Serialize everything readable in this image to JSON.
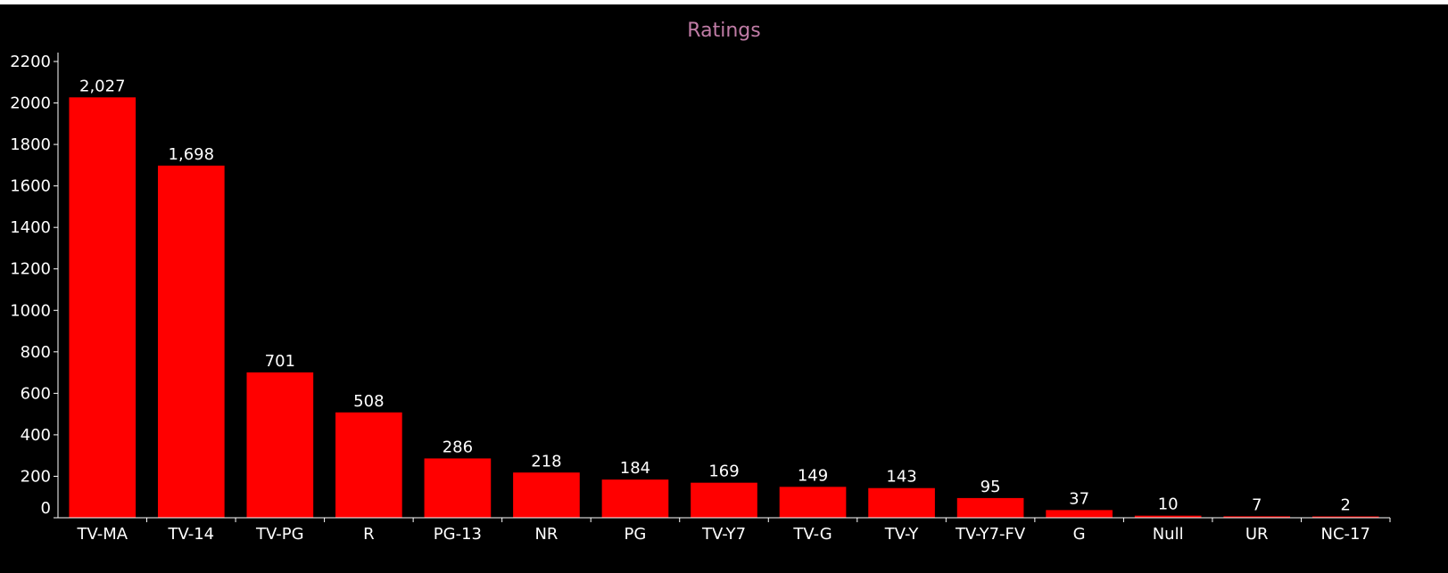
{
  "chart_data": {
    "type": "bar",
    "title": "Ratings",
    "xlabel": "",
    "ylabel": "",
    "categories": [
      "TV-MA",
      "TV-14",
      "TV-PG",
      "R",
      "PG-13",
      "NR",
      "PG",
      "TV-Y7",
      "TV-G",
      "TV-Y",
      "TV-Y7-FV",
      "G",
      "Null",
      "UR",
      "NC-17"
    ],
    "values": [
      2027,
      1698,
      701,
      508,
      286,
      218,
      184,
      169,
      149,
      143,
      95,
      37,
      10,
      7,
      2
    ],
    "value_labels": [
      "2,027",
      "1,698",
      "701",
      "508",
      "286",
      "218",
      "184",
      "169",
      "149",
      "143",
      "95",
      "37",
      "10",
      "7",
      "2"
    ],
    "ylim": [
      0,
      2200
    ],
    "yticks": [
      0,
      200,
      400,
      600,
      800,
      1000,
      1200,
      1400,
      1600,
      1800,
      2000,
      2200
    ],
    "grid": false,
    "legend": "none"
  },
  "colors": {
    "background": "#000000",
    "bar": "#ff0000",
    "text": "#ffffff",
    "title": "#c07ca6",
    "axis": "#ffffff"
  }
}
